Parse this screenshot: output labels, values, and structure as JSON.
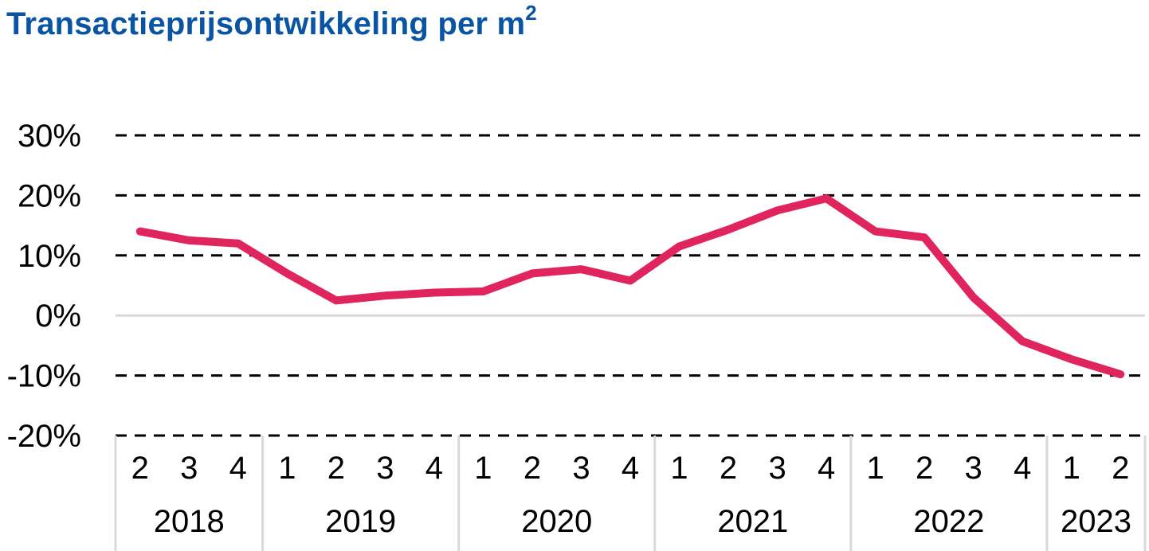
{
  "chart_data": {
    "type": "line",
    "title": "Transactieprijsontwikkeling per m",
    "title_superscript": "2",
    "xlabel": "",
    "ylabel": "",
    "ylim": [
      -20,
      30
    ],
    "y_ticks": [
      30,
      20,
      10,
      0,
      -10,
      -20
    ],
    "y_tick_labels": [
      "30%",
      "20%",
      "10%",
      "0%",
      "-10%",
      "-20%"
    ],
    "grid": true,
    "categories": [
      "2",
      "3",
      "4",
      "1",
      "2",
      "3",
      "4",
      "1",
      "2",
      "3",
      "4",
      "1",
      "2",
      "3",
      "4",
      "1",
      "2",
      "3",
      "4",
      "1",
      "2"
    ],
    "year_groups": [
      {
        "label": "2018",
        "count": 3
      },
      {
        "label": "2019",
        "count": 4
      },
      {
        "label": "2020",
        "count": 4
      },
      {
        "label": "2021",
        "count": 4
      },
      {
        "label": "2022",
        "count": 4
      },
      {
        "label": "2023",
        "count": 2
      }
    ],
    "series": [
      {
        "name": "Transactieprijsontwikkeling",
        "color": "#e0245e",
        "values": [
          14.0,
          12.5,
          12.0,
          7.0,
          2.5,
          3.3,
          3.8,
          4.0,
          7.0,
          7.7,
          5.8,
          11.5,
          14.3,
          17.5,
          19.5,
          14.0,
          13.0,
          3.0,
          -4.3,
          -7.3,
          -9.8
        ]
      }
    ]
  }
}
